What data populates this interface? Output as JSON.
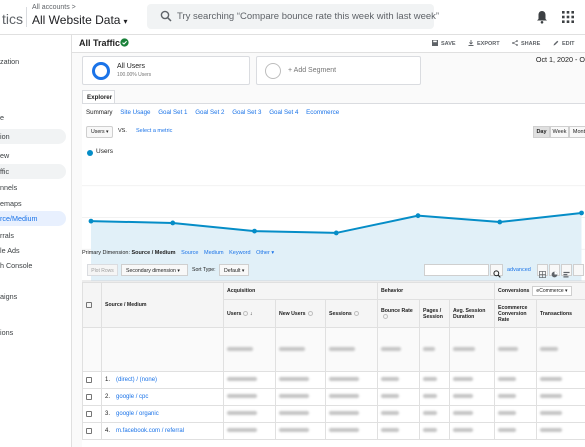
{
  "header": {
    "brand": "tics",
    "account_crumb": "All accounts >",
    "account_name": "All Website Data",
    "search_placeholder": "Try searching “Compare bounce rate this week with last week”"
  },
  "sidenav": {
    "items": [
      "zation",
      "",
      "",
      "e",
      "ion",
      "ew",
      "ffic",
      "nnels",
      "emaps",
      "rce/Medium",
      "rrals",
      "le Ads",
      "h Console",
      "",
      "aigns",
      "",
      "ions"
    ]
  },
  "toolbar": {
    "title": "All Traffic",
    "save": "SAVE",
    "export": "EXPORT",
    "share": "SHARE",
    "edit": "EDIT"
  },
  "segments": {
    "active_name": "All Users",
    "active_sub": "100.00% Users",
    "add_label": "+ Add Segment",
    "date_range": "Oct 1, 2020 - O"
  },
  "explorer": {
    "tab": "Explorer",
    "subtabs": [
      "Summary",
      "Site Usage",
      "Goal Set 1",
      "Goal Set 2",
      "Goal Set 3",
      "Goal Set 4",
      "Ecommerce"
    ],
    "metric": "Users",
    "vs": "VS.",
    "select_metric": "Select a metric",
    "granularity": [
      "Day",
      "Week",
      "Mont"
    ],
    "legend": "Users"
  },
  "chart_data": {
    "type": "area",
    "x": [
      "Oct 1",
      "Oct 2",
      "Oct 3",
      "Oct 4",
      "Oct 5",
      "Oct 6",
      "Oct 7"
    ],
    "xtick_labels": [
      "",
      "Oct 2",
      "Oct 3",
      "Oct 4",
      "Oct 5",
      "Oct 6",
      ""
    ],
    "series": [
      {
        "name": "Users",
        "values": [
          0.66,
          0.64,
          0.55,
          0.53,
          0.72,
          0.65,
          0.75
        ]
      }
    ],
    "ylim": [
      0,
      1.4
    ],
    "color": "#058dc7",
    "fill": "#e1f0f8"
  },
  "dimension": {
    "label": "Primary Dimension:",
    "selected": "Source / Medium",
    "links": [
      "Source",
      "Medium",
      "Keyword",
      "Other"
    ]
  },
  "controls": {
    "plot_rows": "Plot Rows",
    "secondary_dimension": "Secondary dimension",
    "sort_type_label": "Sort Type:",
    "sort_type": "Default",
    "advanced": "advanced"
  },
  "table": {
    "groups": [
      "Acquisition",
      "Behavior",
      "Conversions"
    ],
    "ecommerce_select": "eCommerce",
    "source_header": "Source / Medium",
    "columns": [
      "Users",
      "New Users",
      "Sessions",
      "Bounce Rate",
      "Pages / Session",
      "Avg. Session Duration",
      "Ecommerce Conversion Rate",
      "Transactions"
    ],
    "rows": [
      {
        "num": "1.",
        "source": "(direct) / (none)"
      },
      {
        "num": "2.",
        "source": "google / cpc"
      },
      {
        "num": "3.",
        "source": "google / organic"
      },
      {
        "num": "4.",
        "source": "m.facebook.com / referral"
      }
    ]
  },
  "colors": {
    "accent": "#1a73e8",
    "series": "#058dc7"
  }
}
